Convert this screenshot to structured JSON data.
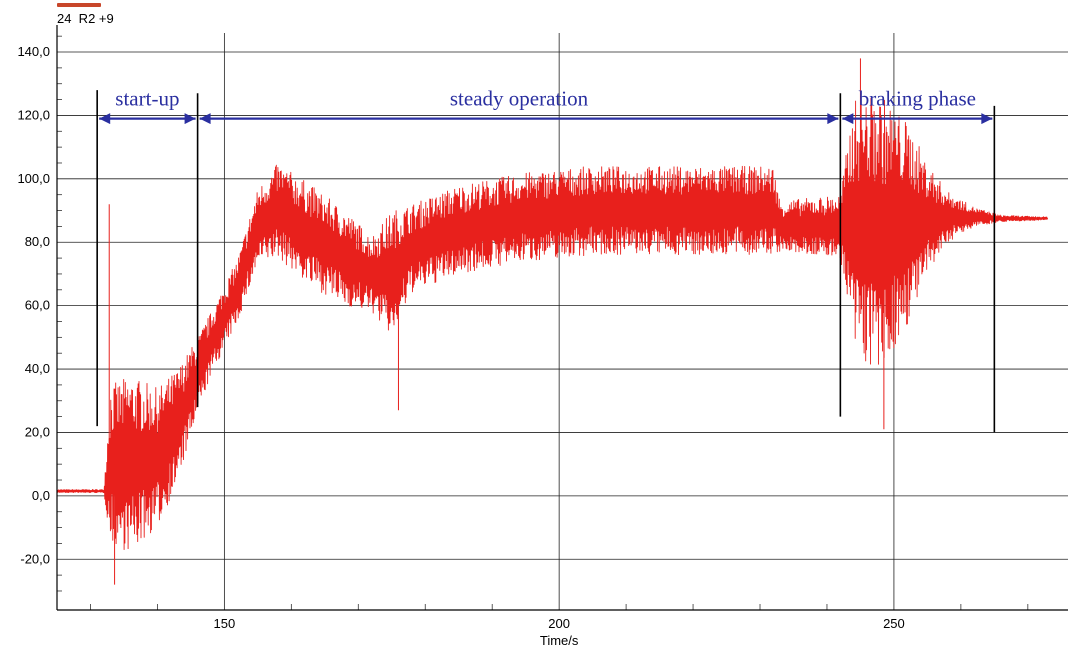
{
  "legend": {
    "label": "24  R2 +9",
    "color": "#c8462a"
  },
  "chart_data": {
    "type": "line",
    "xlabel": "Time/s",
    "ylabel": "",
    "xlim": [
      125,
      276
    ],
    "ylim": [
      -36,
      146
    ],
    "x_ticks": [
      150,
      200,
      250
    ],
    "x_tick_labels": [
      "150",
      "200",
      "250"
    ],
    "y_ticks": [
      -20,
      0,
      20,
      40,
      60,
      80,
      100,
      120,
      140
    ],
    "y_tick_labels": [
      "-20,0",
      "0,0",
      "20,0",
      "40,0",
      "60,0",
      "80,0",
      "100,0",
      "120,0",
      "140,0"
    ],
    "grid": true,
    "series": [
      {
        "color": "#e8201c",
        "envelope": [
          {
            "x": 125,
            "mean": 1.5,
            "amp": 0.5
          },
          {
            "x": 132,
            "mean": 1.5,
            "amp": 0.5
          },
          {
            "x": 133,
            "mean": 10,
            "amp": 25
          },
          {
            "x": 136,
            "mean": 10,
            "amp": 28
          },
          {
            "x": 140,
            "mean": 12,
            "amp": 22
          },
          {
            "x": 143,
            "mean": 22,
            "amp": 18
          },
          {
            "x": 146,
            "mean": 38,
            "amp": 12
          },
          {
            "x": 148,
            "mean": 48,
            "amp": 10
          },
          {
            "x": 152,
            "mean": 65,
            "amp": 10
          },
          {
            "x": 155,
            "mean": 85,
            "amp": 12
          },
          {
            "x": 158,
            "mean": 90,
            "amp": 15
          },
          {
            "x": 163,
            "mean": 82,
            "amp": 16
          },
          {
            "x": 168,
            "mean": 75,
            "amp": 15
          },
          {
            "x": 172,
            "mean": 70,
            "amp": 12
          },
          {
            "x": 175,
            "mean": 70,
            "amp": 20
          },
          {
            "x": 178,
            "mean": 78,
            "amp": 14
          },
          {
            "x": 185,
            "mean": 84,
            "amp": 14
          },
          {
            "x": 195,
            "mean": 88,
            "amp": 14
          },
          {
            "x": 205,
            "mean": 90,
            "amp": 14
          },
          {
            "x": 215,
            "mean": 90,
            "amp": 14
          },
          {
            "x": 225,
            "mean": 90,
            "amp": 14
          },
          {
            "x": 232,
            "mean": 90,
            "amp": 14
          },
          {
            "x": 233,
            "mean": 85,
            "amp": 8
          },
          {
            "x": 242,
            "mean": 85,
            "amp": 10
          },
          {
            "x": 244,
            "mean": 85,
            "amp": 40
          },
          {
            "x": 248,
            "mean": 82,
            "amp": 45
          },
          {
            "x": 252,
            "mean": 86,
            "amp": 32
          },
          {
            "x": 255,
            "mean": 87,
            "amp": 18
          },
          {
            "x": 258,
            "mean": 88,
            "amp": 8
          },
          {
            "x": 262,
            "mean": 88,
            "amp": 3
          },
          {
            "x": 266,
            "mean": 87.5,
            "amp": 1
          },
          {
            "x": 273,
            "mean": 87.5,
            "amp": 0.5
          }
        ],
        "spikes": [
          {
            "x": 132.8,
            "value": 92
          },
          {
            "x": 133.6,
            "value": -28
          },
          {
            "x": 176,
            "value": 27
          },
          {
            "x": 245,
            "value": 138
          },
          {
            "x": 248.5,
            "value": 21
          }
        ]
      }
    ],
    "annotations": {
      "phases": [
        {
          "label": "start-up",
          "x_start": 131,
          "x_end": 146
        },
        {
          "label": "steady operation",
          "x_start": 146,
          "x_end": 242
        },
        {
          "label": "braking phase",
          "x_start": 242,
          "x_end": 265
        }
      ],
      "arrow_y": 119,
      "arrow_color": "#2a2fa0",
      "boundaries": [
        {
          "x": 131,
          "y_top": 128,
          "y_bottom": 22
        },
        {
          "x": 146,
          "y_top": 127,
          "y_bottom": 28
        },
        {
          "x": 242,
          "y_top": 127,
          "y_bottom": 25
        },
        {
          "x": 265,
          "y_top": 123,
          "y_bottom": 20
        }
      ]
    }
  }
}
